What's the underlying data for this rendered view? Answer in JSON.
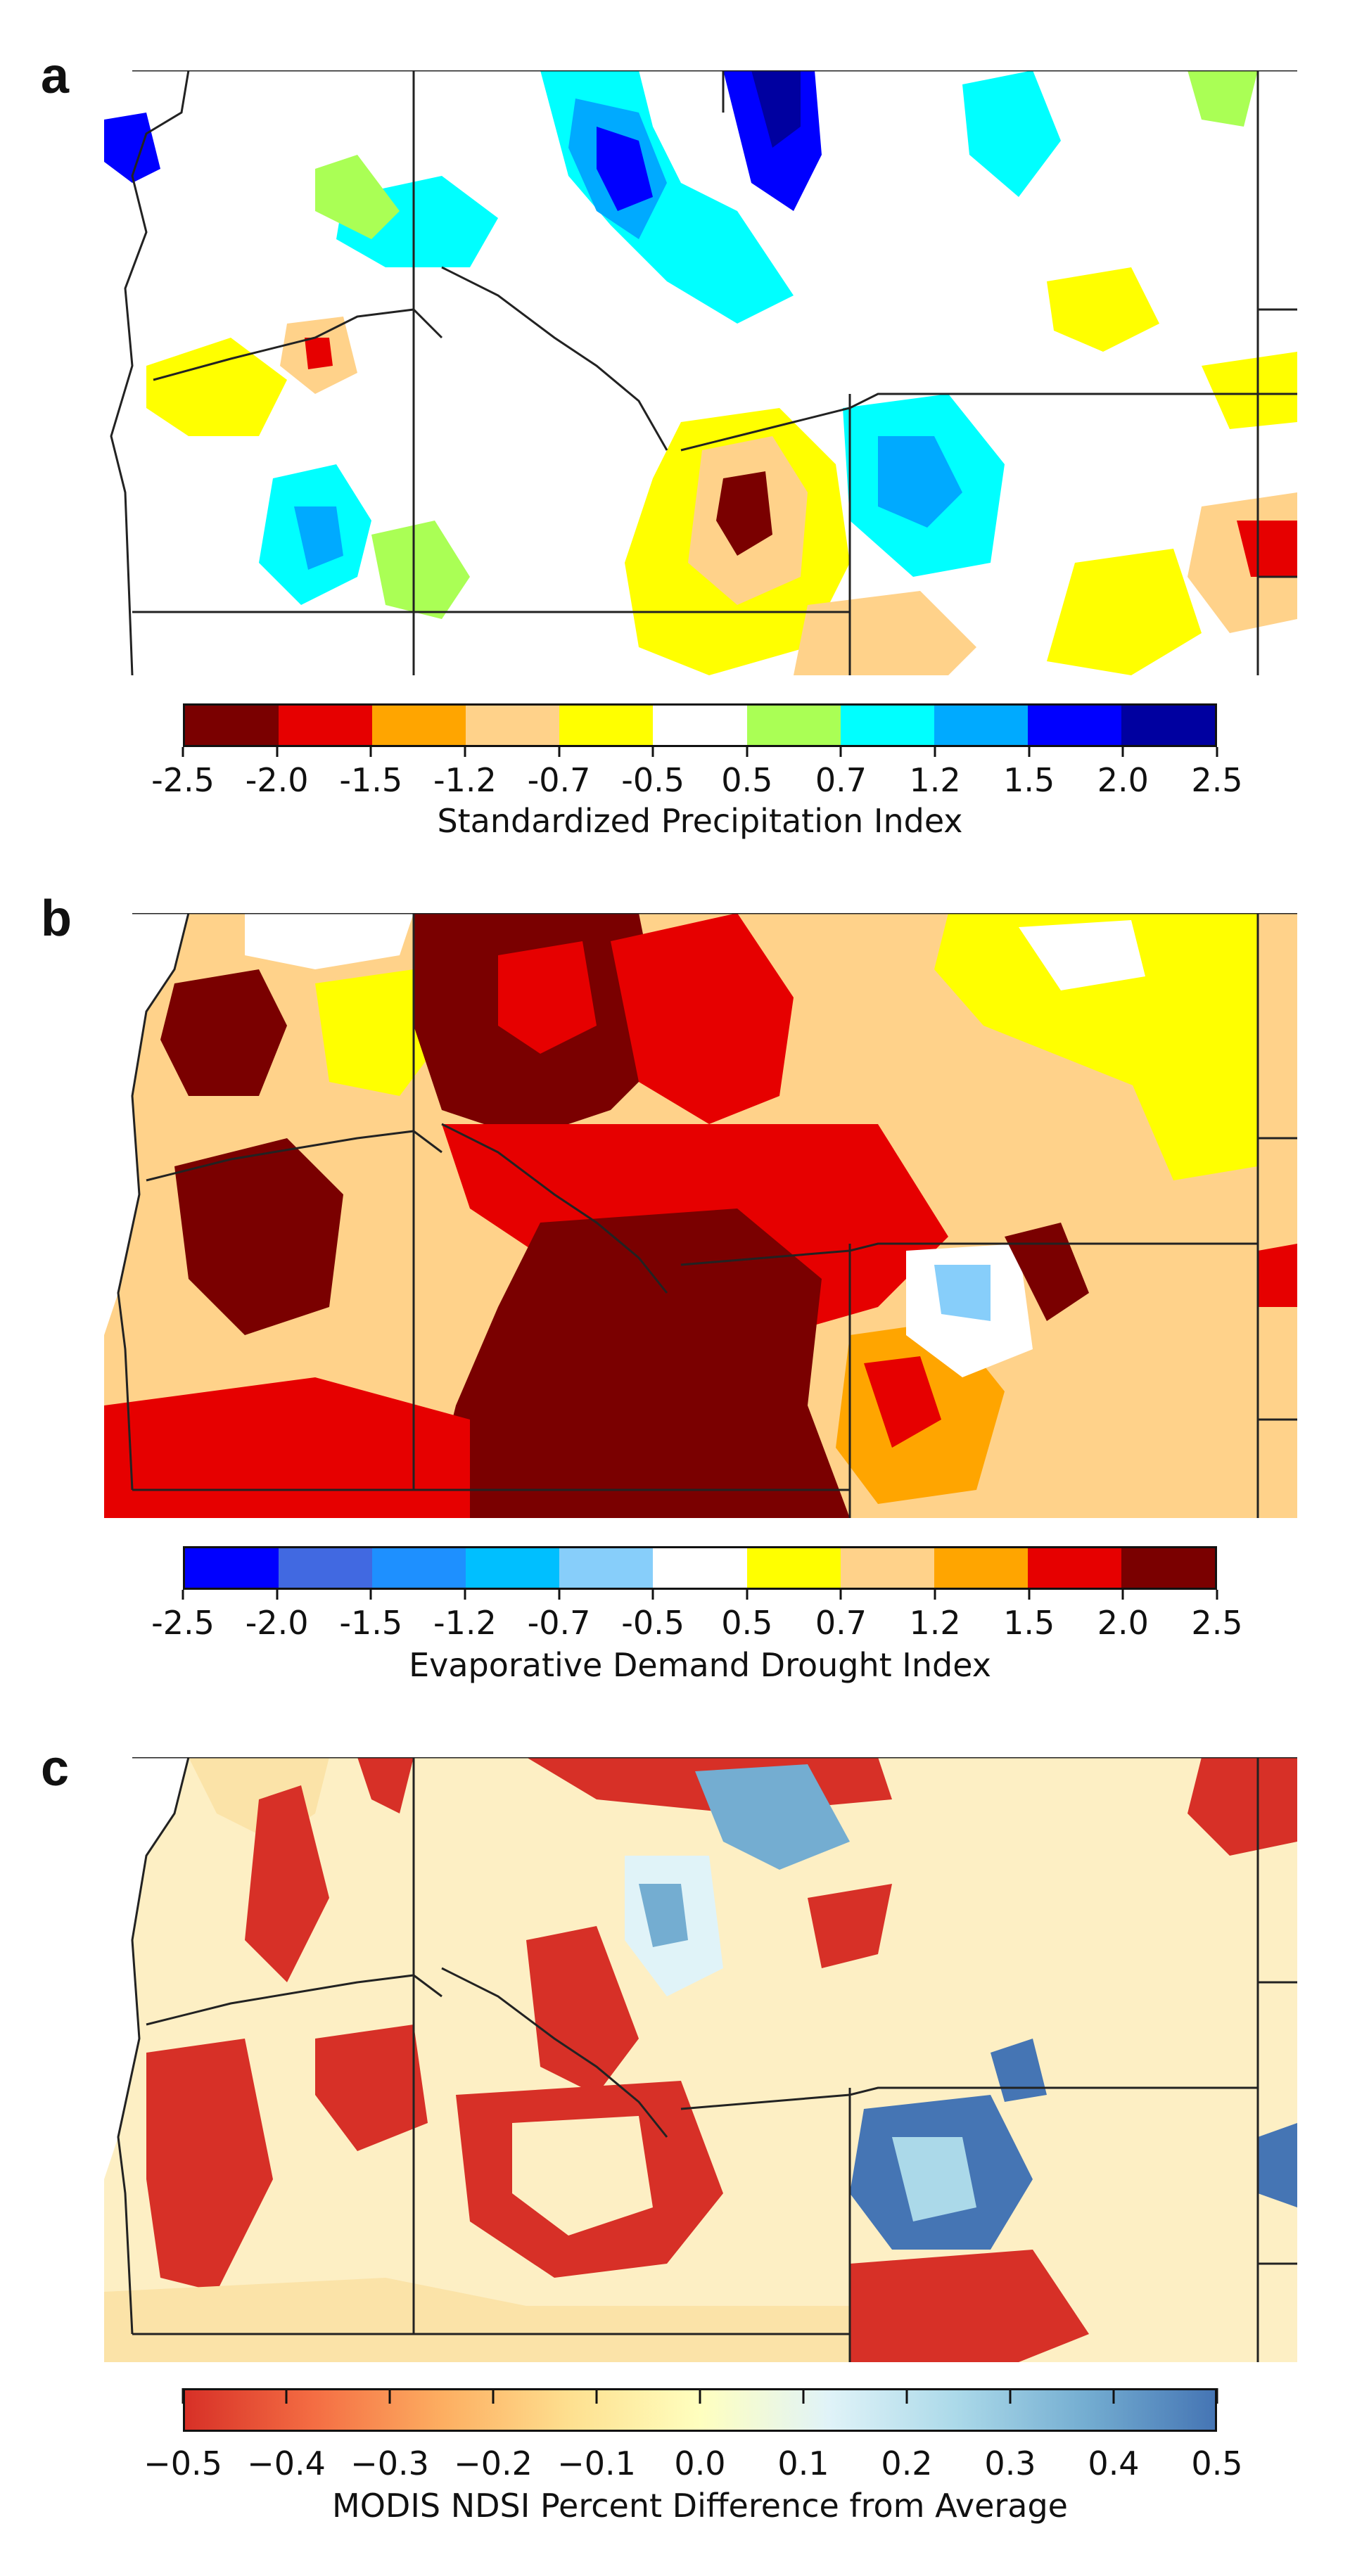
{
  "panels": [
    {
      "letter": "a",
      "title": "Standardized Precipitation Index",
      "tick_labels": [
        "-2.5",
        "-2.0",
        "-1.5",
        "-1.2",
        "-0.7",
        "-0.5",
        "0.5",
        "0.7",
        "1.2",
        "1.5",
        "2.0",
        "2.5"
      ],
      "colors": [
        "#7a0000",
        "#e60000",
        "#ffa500",
        "#ffd28a",
        "#ffff00",
        "#ffffff",
        "#aaff55",
        "#00ffff",
        "#00aaff",
        "#0000ff",
        "#0000a0"
      ]
    },
    {
      "letter": "b",
      "title": "Evaporative Demand Drought Index",
      "tick_labels": [
        "-2.5",
        "-2.0",
        "-1.5",
        "-1.2",
        "-0.7",
        "-0.5",
        "0.5",
        "0.7",
        "1.2",
        "1.5",
        "2.0",
        "2.5"
      ],
      "colors": [
        "#0000ff",
        "#4169e1",
        "#1e90ff",
        "#00bfff",
        "#87cefa",
        "#ffffff",
        "#ffff00",
        "#ffd28a",
        "#ffa500",
        "#e60000",
        "#7a0000"
      ]
    },
    {
      "letter": "c",
      "title": "MODIS NDSI Percent Difference from Average",
      "tick_labels": [
        "−0.5",
        "−0.4",
        "−0.3",
        "−0.2",
        "−0.1",
        "0.0",
        "0.1",
        "0.2",
        "0.3",
        "0.4",
        "0.5"
      ],
      "gradient": [
        "#d73027",
        "#f46d43",
        "#fdae61",
        "#fee090",
        "#ffffbf",
        "#e0f3f8",
        "#abd9e9",
        "#74add1",
        "#4575b4"
      ]
    }
  ]
}
